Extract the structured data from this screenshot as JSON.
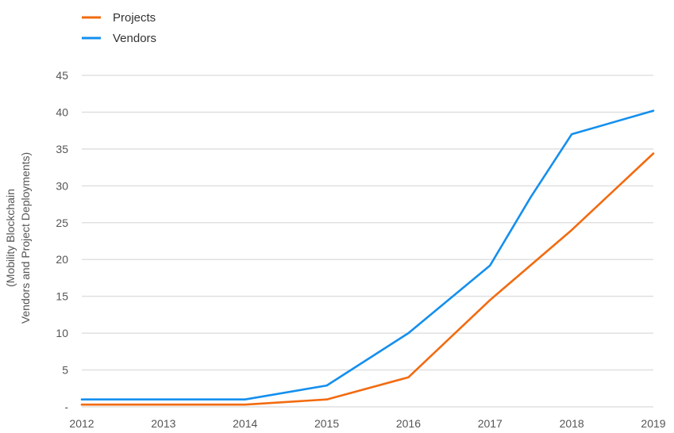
{
  "chart_data": {
    "type": "line",
    "title": "",
    "xlabel": "",
    "ylabel_lines": [
      "(Mobility Blockchain",
      "Vendors and Project Deployments)"
    ],
    "x": [
      "2012",
      "2013",
      "2014",
      "2015",
      "2016",
      "2017",
      "2018",
      "2019"
    ],
    "ylim": [
      0,
      45
    ],
    "yticks": [
      0,
      5,
      10,
      15,
      20,
      25,
      30,
      35,
      40,
      45
    ],
    "ytick_labels": [
      "-",
      "5",
      "10",
      "15",
      "20",
      "25",
      "30",
      "35",
      "40",
      "45"
    ],
    "grid": true,
    "legend_position": "top-left",
    "series": [
      {
        "name": "Projects",
        "color": "#f26b10",
        "values": [
          0.3,
          0.3,
          0.3,
          1.0,
          4.0,
          14.5,
          24.0,
          34.4
        ]
      },
      {
        "name": "Vendors",
        "color": "#148fee",
        "values": [
          1.0,
          1.0,
          1.0,
          2.9,
          10.0,
          19.2,
          37.0,
          40.2
        ],
        "extra_points": [
          {
            "x": 2017.5,
            "y": 28.5
          }
        ]
      }
    ]
  }
}
